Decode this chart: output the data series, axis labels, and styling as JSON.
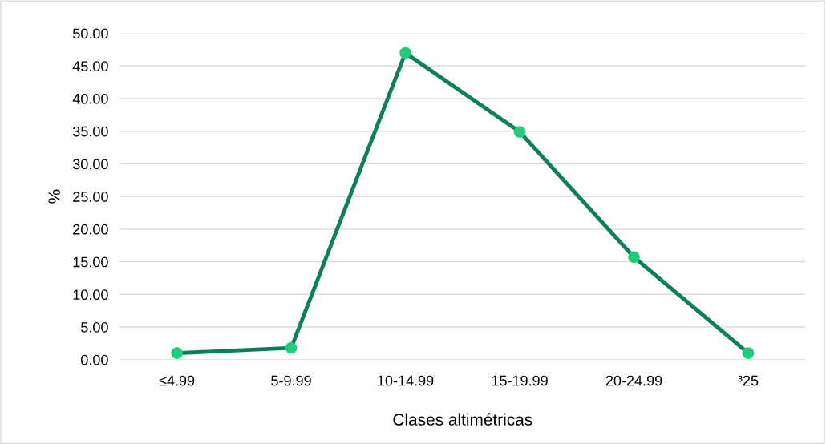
{
  "chart_data": {
    "type": "line",
    "xlabel": "Clases altimétricas",
    "ylabel": "%",
    "categories": [
      "≤4.99",
      "5-9.99",
      "10-14.99",
      "15-19.99",
      "20-24.99",
      "³25"
    ],
    "series": [
      {
        "color": "#0e7f5c",
        "colors": [
          "#1fcc7a",
          "#1fcc7a",
          "#1fcc7a",
          "#1fcc7a",
          "#1fcc7a",
          "#1fcc7a"
        ],
        "values": [
          1.0,
          1.8,
          47.0,
          34.9,
          15.7,
          1.0
        ]
      }
    ],
    "ylim": [
      0,
      50
    ],
    "yticks": [
      {
        "value": 0,
        "label": "0.00"
      },
      {
        "value": 5,
        "label": "5.00"
      },
      {
        "value": 10,
        "label": "10.00"
      },
      {
        "value": 15,
        "label": "15.00"
      },
      {
        "value": 20,
        "label": "20.00"
      },
      {
        "value": 25,
        "label": "25.00"
      },
      {
        "value": 30,
        "label": "30.00"
      },
      {
        "value": 35,
        "label": "35.00"
      },
      {
        "value": 40,
        "label": "40.00"
      },
      {
        "value": 45,
        "label": "45.00"
      },
      {
        "value": 50,
        "label": "50.00"
      }
    ],
    "grid": "y",
    "marker": "circle",
    "line_style": "solid"
  }
}
